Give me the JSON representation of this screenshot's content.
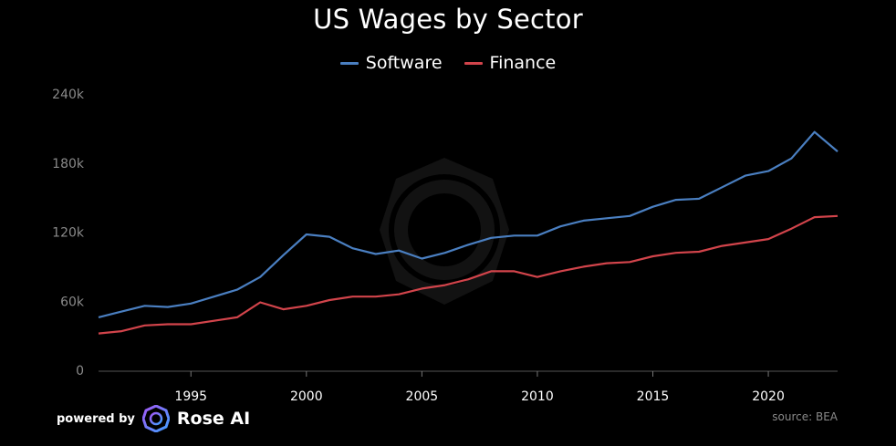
{
  "chart_data": {
    "type": "line",
    "title": "US Wages by Sector",
    "xlabel": "",
    "ylabel": "",
    "xlim": [
      1991,
      2023
    ],
    "ylim": [
      0,
      240000
    ],
    "grid": false,
    "legend_position": "top-center",
    "x_ticks": [
      1995,
      2000,
      2005,
      2010,
      2015,
      2020
    ],
    "y_ticks": [
      0,
      60000,
      120000,
      180000,
      240000
    ],
    "y_tick_labels": [
      "0",
      "60k",
      "120k",
      "180k",
      "240k"
    ],
    "x": [
      1991,
      1992,
      1993,
      1994,
      1995,
      1996,
      1997,
      1998,
      1999,
      2000,
      2001,
      2002,
      2003,
      2004,
      2005,
      2006,
      2007,
      2008,
      2009,
      2010,
      2011,
      2012,
      2013,
      2014,
      2015,
      2016,
      2017,
      2018,
      2019,
      2020,
      2021,
      2022,
      2023
    ],
    "series": [
      {
        "name": "Software",
        "color": "#4a7fc1",
        "values": [
          46000,
          51000,
          56000,
          55000,
          58000,
          64000,
          70000,
          81000,
          100000,
          118000,
          116000,
          106000,
          101000,
          104000,
          97000,
          102000,
          109000,
          115000,
          117000,
          117000,
          125000,
          130000,
          132000,
          134000,
          142000,
          148000,
          149000,
          159000,
          169000,
          173000,
          184000,
          207000,
          190000
        ]
      },
      {
        "name": "Finance",
        "color": "#d2444b",
        "values": [
          32000,
          34000,
          39000,
          40000,
          40000,
          43000,
          46000,
          59000,
          53000,
          56000,
          61000,
          64000,
          64000,
          66000,
          71000,
          74000,
          79000,
          86000,
          86000,
          81000,
          86000,
          90000,
          93000,
          94000,
          99000,
          102000,
          103000,
          108000,
          111000,
          114000,
          123000,
          133000,
          134000
        ]
      }
    ]
  },
  "footer": {
    "powered_by": "powered by",
    "brand": "Rose AI",
    "source": "source: BEA"
  }
}
